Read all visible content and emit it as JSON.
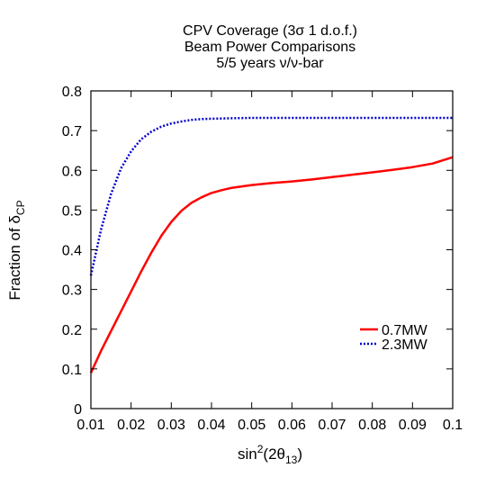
{
  "chart_data": {
    "type": "line",
    "title_lines": [
      "CPV Coverage (3σ 1 d.o.f.)",
      "Beam Power Comparisons",
      "5/5 years ν/ν-bar"
    ],
    "xlabel": {
      "base": "sin",
      "sup": "2",
      "mid": "(2θ",
      "sub": "13",
      "end": ")"
    },
    "ylabel": {
      "base": "Fraction of δ",
      "sub": "CP"
    },
    "xlim": [
      0.01,
      0.1
    ],
    "ylim": [
      0,
      0.8
    ],
    "x_ticks": [
      0.01,
      0.02,
      0.03,
      0.04,
      0.05,
      0.06,
      0.07,
      0.08,
      0.09,
      0.1
    ],
    "x_tick_labels": [
      "0.01",
      "0.02",
      "0.03",
      "0.04",
      "0.05",
      "0.06",
      "0.07",
      "0.08",
      "0.09",
      "0.1"
    ],
    "y_ticks": [
      0,
      0.1,
      0.2,
      0.3,
      0.4,
      0.5,
      0.6,
      0.7,
      0.8
    ],
    "y_tick_labels": [
      "0",
      "0.1",
      "0.2",
      "0.3",
      "0.4",
      "0.5",
      "0.6",
      "0.7",
      "0.8"
    ],
    "grid": false,
    "legend_position": "right",
    "series": [
      {
        "name": "0.7MW",
        "color": "#ff0000",
        "style": "solid",
        "x": [
          0.01,
          0.0125,
          0.015,
          0.0175,
          0.02,
          0.0225,
          0.025,
          0.0275,
          0.03,
          0.0325,
          0.035,
          0.0375,
          0.04,
          0.0425,
          0.045,
          0.05,
          0.055,
          0.06,
          0.065,
          0.07,
          0.075,
          0.08,
          0.085,
          0.09,
          0.095,
          0.1
        ],
        "y": [
          0.09,
          0.145,
          0.195,
          0.245,
          0.295,
          0.345,
          0.392,
          0.435,
          0.47,
          0.498,
          0.518,
          0.532,
          0.543,
          0.55,
          0.556,
          0.563,
          0.568,
          0.572,
          0.577,
          0.583,
          0.589,
          0.595,
          0.601,
          0.608,
          0.617,
          0.633
        ]
      },
      {
        "name": "2.3MW",
        "color": "#0000cc",
        "style": "dotted",
        "x": [
          0.01,
          0.0125,
          0.015,
          0.0175,
          0.02,
          0.0225,
          0.025,
          0.0275,
          0.03,
          0.0325,
          0.035,
          0.0375,
          0.04,
          0.045,
          0.05,
          0.06,
          0.07,
          0.08,
          0.09,
          0.1
        ],
        "y": [
          0.335,
          0.45,
          0.54,
          0.605,
          0.648,
          0.678,
          0.697,
          0.71,
          0.718,
          0.723,
          0.727,
          0.729,
          0.73,
          0.731,
          0.732,
          0.732,
          0.732,
          0.732,
          0.732,
          0.732
        ]
      }
    ]
  }
}
